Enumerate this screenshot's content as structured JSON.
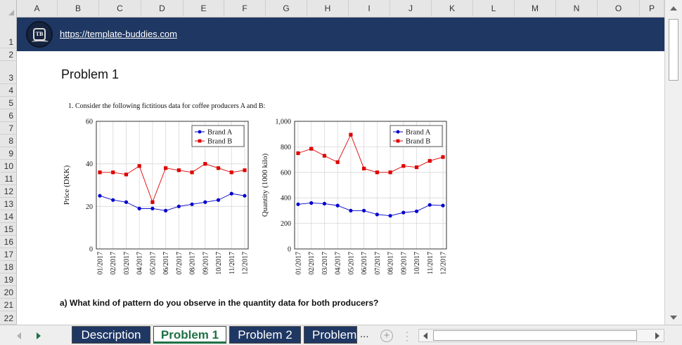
{
  "columns": [
    "A",
    "B",
    "C",
    "D",
    "E",
    "F",
    "G",
    "H",
    "I",
    "J",
    "K",
    "L",
    "M",
    "N",
    "O",
    "P"
  ],
  "rows": [
    "1",
    "2",
    "3",
    "4",
    "5",
    "6",
    "7",
    "8",
    "9",
    "10",
    "11",
    "12",
    "13",
    "14",
    "15",
    "16",
    "17",
    "18",
    "19",
    "20",
    "21",
    "22"
  ],
  "banner": {
    "url": "https://template-buddies.com",
    "logo_text": "TB"
  },
  "sheet": {
    "title": "Problem 1",
    "problem_text": "1.  Consider the following fictitious data for coffee producers A and B:",
    "question": "a) What kind of pattern do you observe in the quantity data for both producers?"
  },
  "tabs": [
    {
      "label": "Description",
      "active": false
    },
    {
      "label": "Problem 1",
      "active": true
    },
    {
      "label": "Problem 2",
      "active": false
    },
    {
      "label": "Problem",
      "active": false
    }
  ],
  "tab_overflow": "...",
  "add_sheet": "+",
  "colors": {
    "banner": "#1f3763",
    "brand_a": "#0000cc",
    "brand_b": "#dd0000",
    "active_tab": "#1e7145"
  },
  "chart_data": [
    {
      "type": "line",
      "categories": [
        "01/2017",
        "02/2017",
        "03/2017",
        "04/2017",
        "05/2017",
        "06/2017",
        "07/2017",
        "08/2017",
        "09/2017",
        "10/2017",
        "11/2017",
        "12/2017"
      ],
      "series": [
        {
          "name": "Brand A",
          "values": [
            25,
            23,
            22,
            19,
            19,
            18,
            20,
            21,
            22,
            23,
            26,
            25
          ]
        },
        {
          "name": "Brand B",
          "values": [
            36,
            36,
            35,
            39,
            22,
            38,
            37,
            36,
            40,
            38,
            36,
            37
          ]
        }
      ],
      "xlabel": "",
      "ylabel": "Price (DKK)",
      "ylim": [
        0,
        60
      ],
      "yticks": [
        0,
        20,
        40,
        60
      ],
      "ytick_labels": [
        "0",
        "20",
        "40",
        "60"
      ],
      "grid": true,
      "legend": "top-right"
    },
    {
      "type": "line",
      "categories": [
        "01/2017",
        "02/2017",
        "03/2017",
        "04/2017",
        "05/2017",
        "06/2017",
        "07/2017",
        "08/2017",
        "09/2017",
        "10/2017",
        "11/2017",
        "12/2017"
      ],
      "series": [
        {
          "name": "Brand A",
          "values": [
            350,
            360,
            355,
            340,
            300,
            300,
            270,
            260,
            285,
            295,
            345,
            340
          ]
        },
        {
          "name": "Brand B",
          "values": [
            750,
            785,
            730,
            680,
            895,
            630,
            600,
            600,
            650,
            640,
            690,
            720
          ]
        }
      ],
      "xlabel": "",
      "ylabel": "Quantity (1000 kilo)",
      "ylim": [
        0,
        1000
      ],
      "yticks": [
        0,
        200,
        400,
        600,
        800,
        1000
      ],
      "ytick_labels": [
        "0",
        "200",
        "400",
        "600",
        "800",
        "1,000"
      ],
      "grid": true,
      "legend": "top-right"
    }
  ]
}
